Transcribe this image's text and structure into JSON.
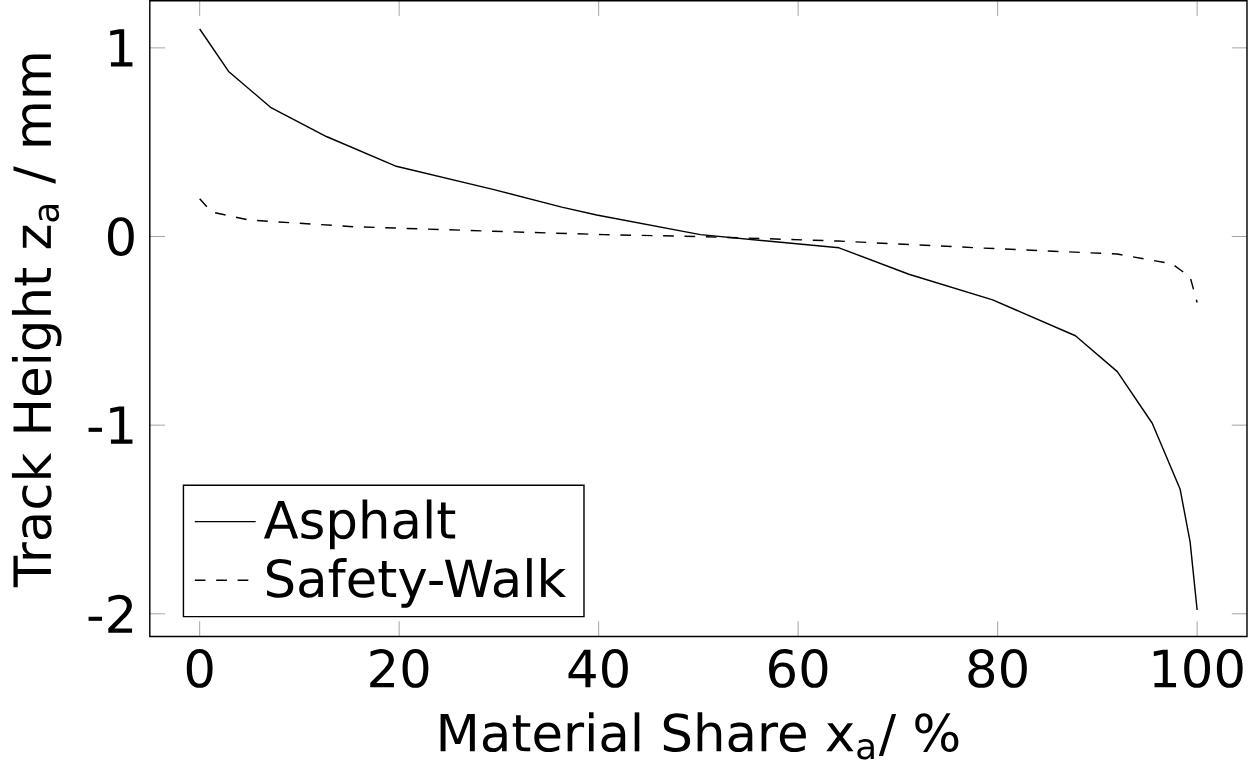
{
  "chart_data": {
    "type": "line",
    "xlabel": "Material Share x$_{a}$/ %",
    "ylabel": "Track Height z$_{a}$ / mm",
    "xlim": [
      -5,
      105
    ],
    "ylim": [
      -2.12,
      1.25
    ],
    "xticks": [
      0,
      20,
      40,
      60,
      80,
      100
    ],
    "yticks": [
      -2,
      -1,
      0,
      1
    ],
    "legend": "bottom left",
    "grid": false,
    "marker": "none",
    "series": [
      {
        "name": "Asphalt",
        "color": "#000000",
        "line_style": "solid",
        "x": [
          0,
          2.9,
          7.1,
          12.7,
          19.6,
          29.4,
          36.3,
          39.8,
          50.2,
          64.1,
          71.1,
          79.5,
          87.8,
          92,
          95.5,
          98.3,
          99.3,
          100
        ],
        "values": [
          1.1,
          0.875,
          0.685,
          0.53,
          0.374,
          0.25,
          0.156,
          0.114,
          0.01,
          -0.06,
          -0.2,
          -0.336,
          -0.526,
          -0.716,
          -0.99,
          -1.34,
          -1.62,
          -1.98
        ]
      },
      {
        "name": "Safety-Walk",
        "color": "#000000",
        "line_style": "dashed",
        "x": [
          0,
          1.2,
          5,
          15.4,
          29.4,
          40.5,
          50,
          64,
          78,
          92,
          97.5,
          99.3,
          100
        ],
        "values": [
          0.2,
          0.13,
          0.087,
          0.052,
          0.028,
          0.01,
          0,
          -0.024,
          -0.06,
          -0.093,
          -0.145,
          -0.215,
          -0.35
        ]
      }
    ]
  }
}
